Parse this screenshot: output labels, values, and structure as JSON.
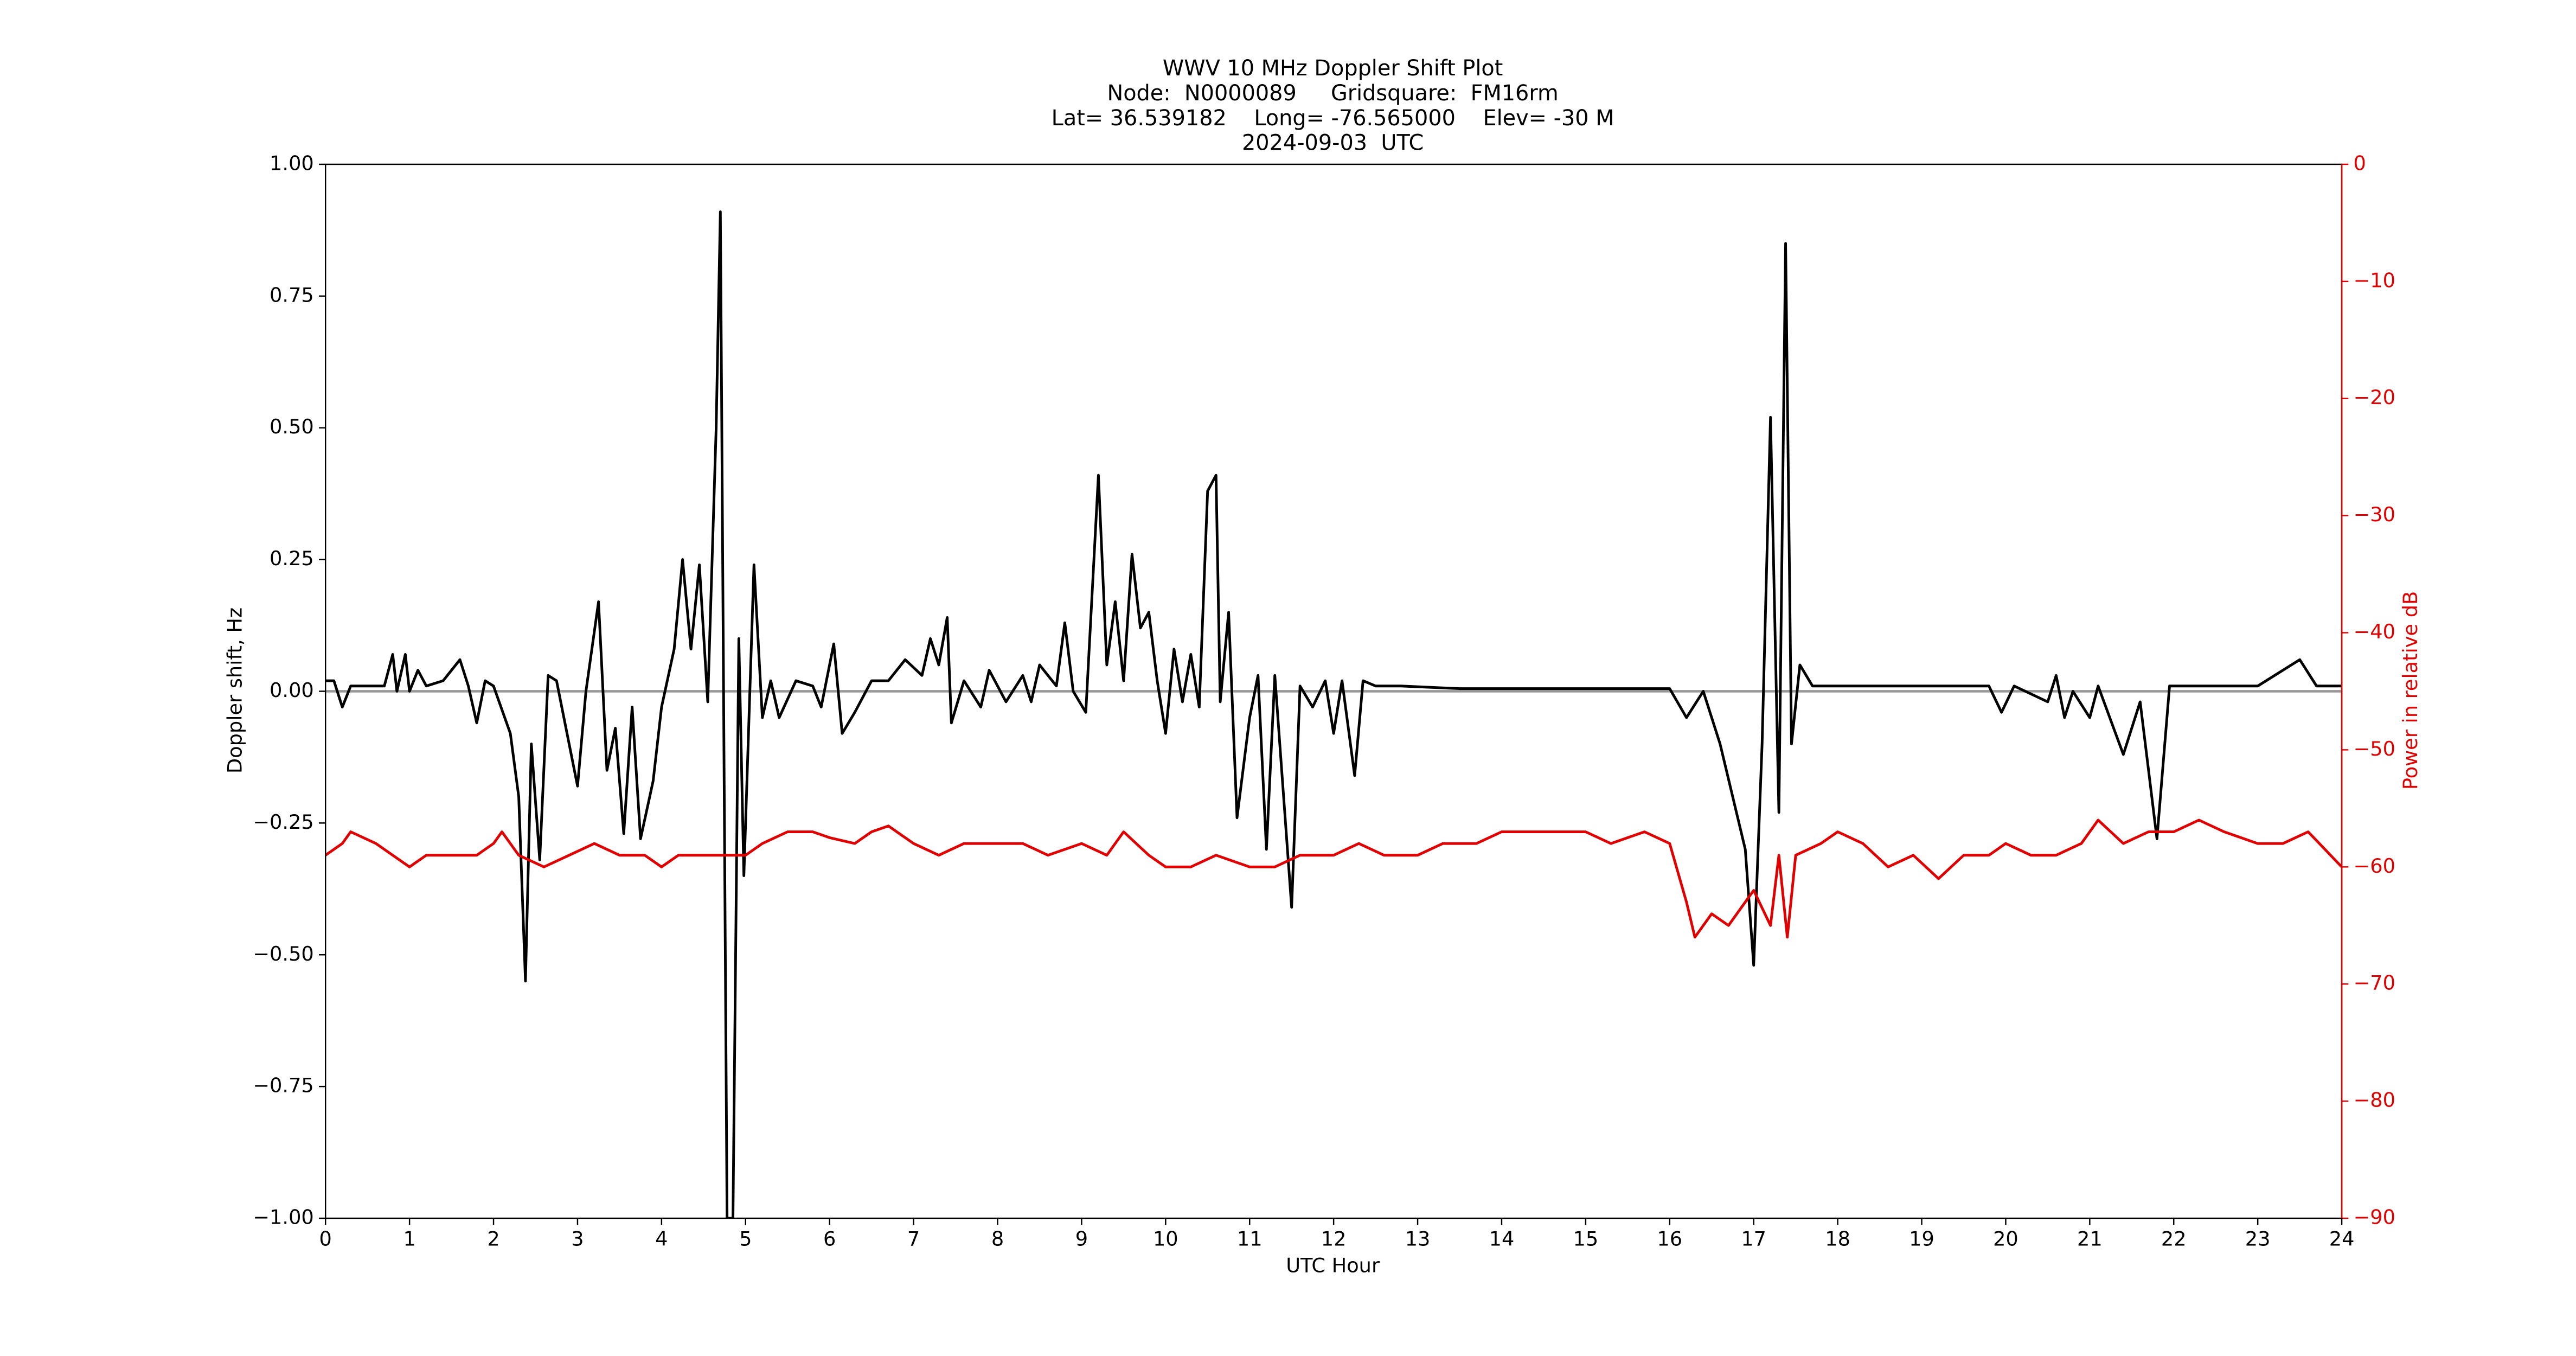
{
  "chart_data": {
    "type": "line",
    "title": [
      "WWV 10 MHz Doppler Shift Plot",
      "Node:  N0000089     Gridsquare:  FM16rm",
      "Lat= 36.539182    Long= -76.565000    Elev= -30 M",
      "2024-09-03  UTC"
    ],
    "xlabel": "UTC Hour",
    "ylabel": "Doppler shift, Hz",
    "y2label": "Power in relative dB",
    "xlim": [
      0,
      24
    ],
    "xticks": [
      0,
      1,
      2,
      3,
      4,
      5,
      6,
      7,
      8,
      9,
      10,
      11,
      12,
      13,
      14,
      15,
      16,
      17,
      18,
      19,
      20,
      21,
      22,
      23,
      24
    ],
    "ylim": [
      -1,
      1
    ],
    "yticks": [
      {
        "value": -1,
        "label": "−1.00"
      },
      {
        "value": -0.75,
        "label": "−0.75"
      },
      {
        "value": -0.5,
        "label": "−0.50"
      },
      {
        "value": -0.25,
        "label": "−0.25"
      },
      {
        "value": 0,
        "label": "0.00"
      },
      0.25,
      {
        "value": 0.5,
        "label": "0.50"
      },
      0.75,
      {
        "value": 1,
        "label": "1.00"
      }
    ],
    "y2lim": [
      -90,
      0
    ],
    "y2ticks": [
      {
        "value": -90,
        "label": "−90"
      },
      {
        "value": -80,
        "label": "−80"
      },
      {
        "value": -70,
        "label": "−70"
      },
      {
        "value": -60,
        "label": "−60"
      },
      {
        "value": -50,
        "label": "−50"
      },
      {
        "value": -40,
        "label": "−40"
      },
      {
        "value": -30,
        "label": "−30"
      },
      {
        "value": -20,
        "label": "−20"
      },
      {
        "value": -10,
        "label": "−10"
      },
      0
    ],
    "y2color": "#e00000",
    "hline": 0,
    "hline_color": "#999999",
    "series": [
      {
        "color": "#000000",
        "x": [
          0,
          0.1,
          0.2,
          0.3,
          0.5,
          0.7,
          0.8,
          0.85,
          0.95,
          1.0,
          1.1,
          1.2,
          1.4,
          1.6,
          1.7,
          1.8,
          1.9,
          2.0,
          2.2,
          2.3,
          2.38,
          2.45,
          2.55,
          2.65,
          2.75,
          2.9,
          3.0,
          3.1,
          3.25,
          3.35,
          3.45,
          3.55,
          3.65,
          3.75,
          3.9,
          4.0,
          4.15,
          4.25,
          4.35,
          4.45,
          4.55,
          4.65,
          4.7,
          4.78,
          4.85,
          4.92,
          4.98,
          5.1,
          5.2,
          5.3,
          5.4,
          5.6,
          5.8,
          5.9,
          6.05,
          6.15,
          6.3,
          6.5,
          6.7,
          6.9,
          7.1,
          7.2,
          7.3,
          7.4,
          7.45,
          7.6,
          7.8,
          7.9,
          8.1,
          8.3,
          8.4,
          8.5,
          8.7,
          8.8,
          8.9,
          9.05,
          9.2,
          9.3,
          9.4,
          9.5,
          9.6,
          9.7,
          9.8,
          9.9,
          10.0,
          10.1,
          10.2,
          10.3,
          10.4,
          10.5,
          10.6,
          10.65,
          10.75,
          10.85,
          11.0,
          11.1,
          11.2,
          11.3,
          11.5,
          11.6,
          11.75,
          11.9,
          12.0,
          12.1,
          12.25,
          12.35,
          12.5,
          12.8,
          13.5,
          14.0,
          15.0,
          16.0,
          16.2,
          16.4,
          16.6,
          16.75,
          16.9,
          17.0,
          17.1,
          17.2,
          17.3,
          17.38,
          17.45,
          17.55,
          17.7,
          18.5,
          19.0,
          19.8,
          19.95,
          20.1,
          20.5,
          20.6,
          20.7,
          20.8,
          21.0,
          21.1,
          21.4,
          21.6,
          21.8,
          21.95,
          22.5,
          23.0,
          23.5,
          23.7,
          24.0
        ],
        "values": [
          0.02,
          0.02,
          -0.03,
          0.01,
          0.01,
          0.01,
          0.07,
          0,
          0.07,
          0,
          0.04,
          0.01,
          0.02,
          0.06,
          0.01,
          -0.06,
          0.02,
          0.01,
          -0.08,
          -0.2,
          -0.55,
          -0.1,
          -0.32,
          0.03,
          0.02,
          -0.1,
          -0.18,
          0,
          0.17,
          -0.15,
          -0.07,
          -0.27,
          -0.03,
          -0.28,
          -0.17,
          -0.03,
          0.08,
          0.25,
          0.08,
          0.24,
          -0.02,
          0.5,
          0.91,
          -1.0,
          -1.0,
          0.1,
          -0.35,
          0.24,
          -0.05,
          0.02,
          -0.05,
          0.02,
          0.01,
          -0.03,
          0.09,
          -0.08,
          -0.04,
          0.02,
          0.02,
          0.06,
          0.03,
          0.1,
          0.05,
          0.14,
          -0.06,
          0.02,
          -0.03,
          0.04,
          -0.02,
          0.03,
          -0.02,
          0.05,
          0.01,
          0.13,
          0,
          -0.04,
          0.41,
          0.05,
          0.17,
          0.02,
          0.26,
          0.12,
          0.15,
          0.02,
          -0.08,
          0.08,
          -0.02,
          0.07,
          -0.03,
          0.38,
          0.41,
          -0.02,
          0.15,
          -0.24,
          -0.05,
          0.03,
          -0.3,
          0.03,
          -0.41,
          0.01,
          -0.03,
          0.02,
          -0.08,
          0.02,
          -0.16,
          0.02,
          0.01,
          0.01,
          0.005,
          0.005,
          0.005,
          0.005,
          -0.05,
          0,
          -0.1,
          -0.2,
          -0.3,
          -0.52,
          -0.1,
          0.52,
          -0.23,
          0.85,
          -0.1,
          0.05,
          0.01,
          0.01,
          0.01,
          0.01,
          -0.04,
          0.01,
          -0.02,
          0.03,
          -0.05,
          0,
          -0.05,
          0.01,
          -0.12,
          -0.02,
          -0.28,
          0.01,
          0.01,
          0.01,
          0.06,
          0.01,
          0.01
        ]
      },
      {
        "color": "#e00000",
        "axis": "y2",
        "x": [
          0,
          0.2,
          0.3,
          0.6,
          0.8,
          1.0,
          1.2,
          1.5,
          1.8,
          2.0,
          2.1,
          2.3,
          2.6,
          2.9,
          3.2,
          3.5,
          3.8,
          4.0,
          4.2,
          4.5,
          4.8,
          5.0,
          5.2,
          5.5,
          5.8,
          6.0,
          6.3,
          6.5,
          6.7,
          7.0,
          7.3,
          7.6,
          8.0,
          8.3,
          8.6,
          9.0,
          9.3,
          9.5,
          9.8,
          10.0,
          10.3,
          10.6,
          11.0,
          11.3,
          11.6,
          12.0,
          12.3,
          12.6,
          13.0,
          13.3,
          13.7,
          14.0,
          14.3,
          14.7,
          15.0,
          15.3,
          15.7,
          16.0,
          16.2,
          16.3,
          16.5,
          16.7,
          16.9,
          17.0,
          17.2,
          17.3,
          17.4,
          17.5,
          17.8,
          18.0,
          18.3,
          18.6,
          18.9,
          19.2,
          19.5,
          19.8,
          20.0,
          20.3,
          20.6,
          20.9,
          21.1,
          21.4,
          21.7,
          22.0,
          22.3,
          22.6,
          23.0,
          23.3,
          23.6,
          24.0
        ],
        "values": [
          -59,
          -58,
          -57,
          -58,
          -59,
          -60,
          -59,
          -59,
          -59,
          -58,
          -57,
          -59,
          -60,
          -59,
          -58,
          -59,
          -59,
          -60,
          -59,
          -59,
          -59,
          -59,
          -58,
          -57,
          -57,
          -57.5,
          -58,
          -57,
          -56.5,
          -58,
          -59,
          -58,
          -58,
          -58,
          -59,
          -58,
          -59,
          -57,
          -59,
          -60,
          -60,
          -59,
          -60,
          -60,
          -59,
          -59,
          -58,
          -59,
          -59,
          -58,
          -58,
          -57,
          -57,
          -57,
          -57,
          -58,
          -57,
          -58,
          -63,
          -66,
          -64,
          -65,
          -63,
          -62,
          -65,
          -59,
          -66,
          -59,
          -58,
          -57,
          -58,
          -60,
          -59,
          -61,
          -59,
          -59,
          -58,
          -59,
          -59,
          -58,
          -56,
          -58,
          -57,
          -57,
          -56,
          -57,
          -58,
          -58,
          -57,
          -60
        ]
      }
    ]
  }
}
